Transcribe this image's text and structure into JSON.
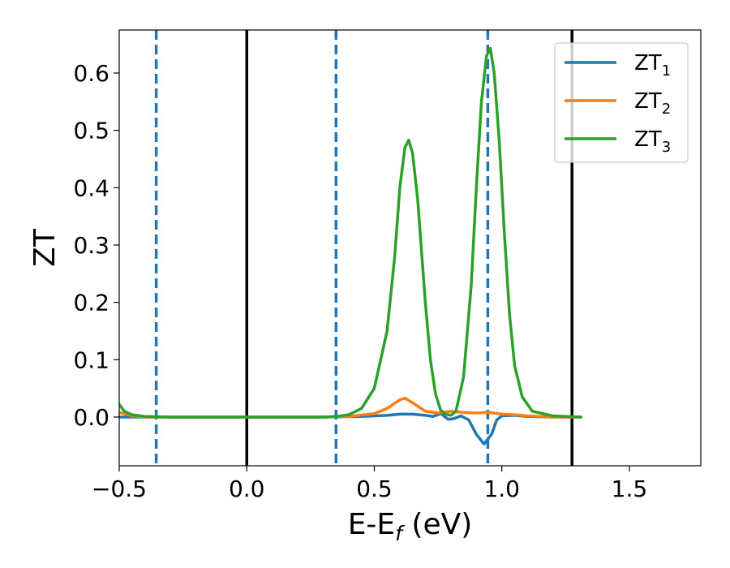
{
  "chart_data": {
    "type": "line",
    "xlabel": "E-E_f (eV)",
    "ylabel": "ZT",
    "xlim": [
      -0.5,
      1.78
    ],
    "ylim": [
      -0.085,
      0.675
    ],
    "xticks": [
      -0.5,
      0.0,
      0.5,
      1.0,
      1.5
    ],
    "xtick_labels": [
      "−0.5",
      "0.0",
      "0.5",
      "1.0",
      "1.5"
    ],
    "yticks": [
      0.0,
      0.1,
      0.2,
      0.3,
      0.4,
      0.5,
      0.6
    ],
    "ytick_labels": [
      "0.0",
      "0.1",
      "0.2",
      "0.3",
      "0.4",
      "0.5",
      "0.6"
    ],
    "grid": false,
    "legend_position": "top-right",
    "vlines": [
      {
        "x": -0.355,
        "style": "dashed",
        "color": "#1f77b4"
      },
      {
        "x": 0.0,
        "style": "solid",
        "color": "#000000"
      },
      {
        "x": 0.35,
        "style": "dashed",
        "color": "#1f77b4"
      },
      {
        "x": 0.945,
        "style": "dashed",
        "color": "#1f77b4"
      },
      {
        "x": 1.275,
        "style": "solid",
        "color": "#000000"
      }
    ],
    "series": [
      {
        "name": "ZT1",
        "label_main": "ZT",
        "label_sub": "1",
        "color": "#1f77b4",
        "points": [
          [
            -0.5,
            0.0
          ],
          [
            0.3,
            0.0
          ],
          [
            0.45,
            0.001
          ],
          [
            0.55,
            0.003
          ],
          [
            0.6,
            0.005
          ],
          [
            0.65,
            0.005
          ],
          [
            0.7,
            0.003
          ],
          [
            0.73,
            0.001
          ],
          [
            0.76,
            0.006
          ],
          [
            0.79,
            -0.004
          ],
          [
            0.81,
            -0.003
          ],
          [
            0.84,
            0.002
          ],
          [
            0.87,
            -0.005
          ],
          [
            0.9,
            -0.03
          ],
          [
            0.93,
            -0.047
          ],
          [
            0.96,
            -0.03
          ],
          [
            0.98,
            -0.005
          ],
          [
            1.0,
            0.002
          ],
          [
            1.05,
            0.003
          ],
          [
            1.1,
            0.001
          ],
          [
            1.2,
            0.0
          ],
          [
            1.31,
            0.0
          ]
        ]
      },
      {
        "name": "ZT2",
        "label_main": "ZT",
        "label_sub": "2",
        "color": "#ff7f0e",
        "points": [
          [
            -0.5,
            0.008
          ],
          [
            -0.45,
            0.002
          ],
          [
            -0.4,
            0.0
          ],
          [
            0.3,
            0.0
          ],
          [
            0.4,
            0.001
          ],
          [
            0.5,
            0.006
          ],
          [
            0.55,
            0.015
          ],
          [
            0.6,
            0.03
          ],
          [
            0.62,
            0.033
          ],
          [
            0.66,
            0.022
          ],
          [
            0.7,
            0.01
          ],
          [
            0.75,
            0.007
          ],
          [
            0.8,
            0.01
          ],
          [
            0.85,
            0.008
          ],
          [
            0.9,
            0.007
          ],
          [
            0.95,
            0.008
          ],
          [
            1.0,
            0.005
          ],
          [
            1.05,
            0.004
          ],
          [
            1.1,
            0.002
          ],
          [
            1.2,
            0.0
          ],
          [
            1.31,
            0.0
          ]
        ]
      },
      {
        "name": "ZT3",
        "label_main": "ZT",
        "label_sub": "3",
        "color": "#2ca02c",
        "points": [
          [
            -0.5,
            0.022
          ],
          [
            -0.48,
            0.01
          ],
          [
            -0.45,
            0.004
          ],
          [
            -0.4,
            0.001
          ],
          [
            -0.3,
            0.0
          ],
          [
            0.3,
            0.0
          ],
          [
            0.35,
            0.001
          ],
          [
            0.4,
            0.004
          ],
          [
            0.45,
            0.015
          ],
          [
            0.5,
            0.05
          ],
          [
            0.55,
            0.15
          ],
          [
            0.58,
            0.28
          ],
          [
            0.6,
            0.4
          ],
          [
            0.62,
            0.47
          ],
          [
            0.635,
            0.483
          ],
          [
            0.65,
            0.46
          ],
          [
            0.67,
            0.38
          ],
          [
            0.7,
            0.2
          ],
          [
            0.72,
            0.1
          ],
          [
            0.74,
            0.04
          ],
          [
            0.76,
            0.012
          ],
          [
            0.78,
            0.005
          ],
          [
            0.8,
            0.003
          ],
          [
            0.82,
            0.01
          ],
          [
            0.85,
            0.07
          ],
          [
            0.88,
            0.23
          ],
          [
            0.9,
            0.4
          ],
          [
            0.92,
            0.55
          ],
          [
            0.94,
            0.63
          ],
          [
            0.955,
            0.643
          ],
          [
            0.97,
            0.6
          ],
          [
            0.99,
            0.48
          ],
          [
            1.01,
            0.32
          ],
          [
            1.03,
            0.18
          ],
          [
            1.05,
            0.09
          ],
          [
            1.08,
            0.035
          ],
          [
            1.12,
            0.01
          ],
          [
            1.2,
            0.002
          ],
          [
            1.31,
            0.0
          ]
        ]
      }
    ]
  }
}
